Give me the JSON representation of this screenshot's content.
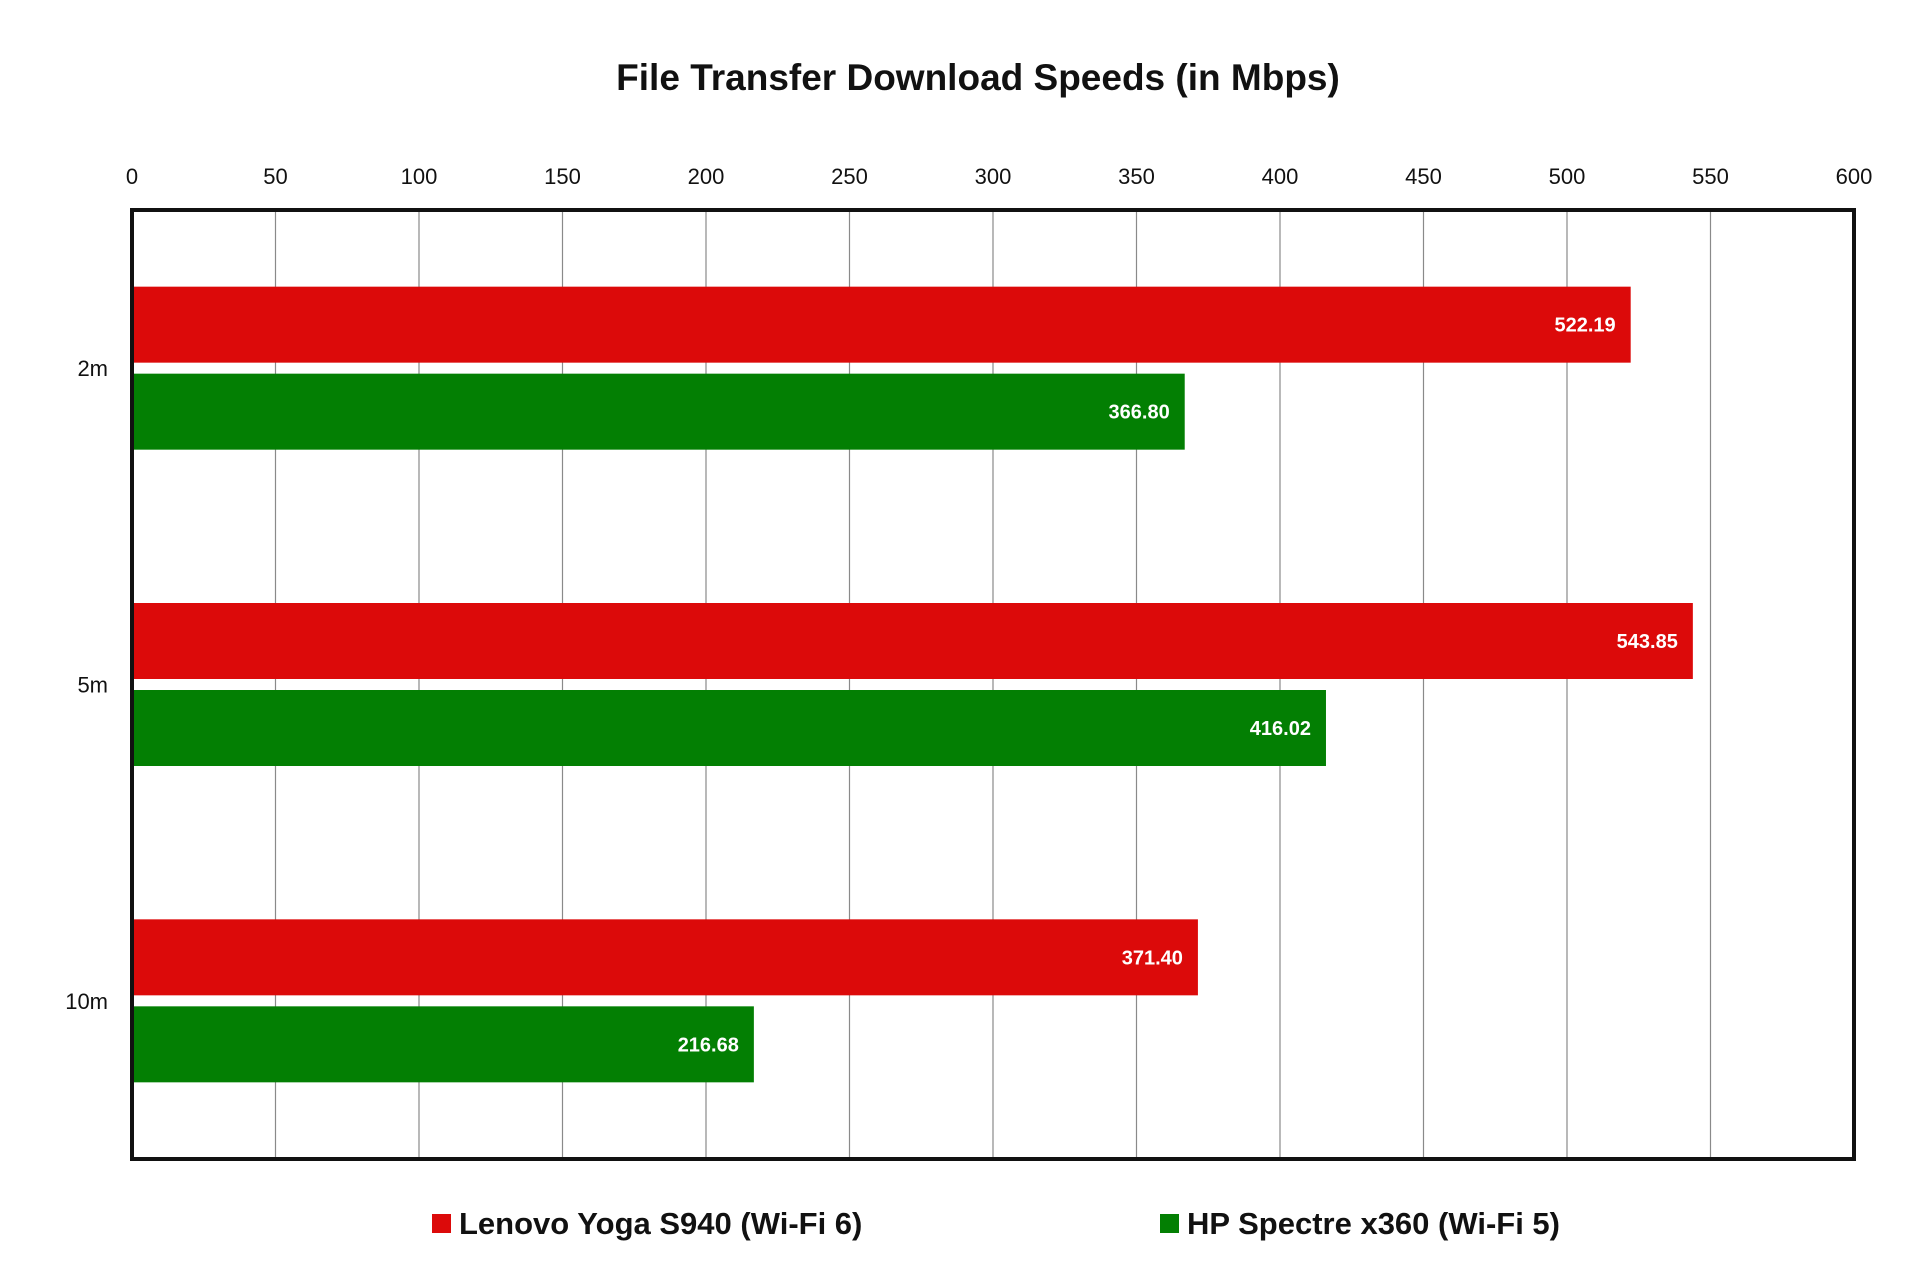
{
  "chart_data": {
    "type": "bar",
    "orientation": "horizontal",
    "title": "File Transfer Download Speeds (in Mbps)",
    "xlabel": "",
    "ylabel": "",
    "xlim": [
      0,
      600
    ],
    "x_ticks": [
      "0",
      "50",
      "100",
      "150",
      "200",
      "250",
      "300",
      "350",
      "400",
      "450",
      "500",
      "550",
      "600"
    ],
    "x_axis_position": "top",
    "grid": true,
    "legend_position": "bottom",
    "categories": [
      "2m",
      "5m",
      "10m"
    ],
    "series": [
      {
        "name": "Lenovo Yoga S940 (Wi-Fi 6)",
        "color": "#dc0a0a",
        "values": [
          522.19,
          543.85,
          371.4
        ],
        "labels": [
          "522.19",
          "543.85",
          "371.40"
        ]
      },
      {
        "name": "HP Spectre x360 (Wi-Fi 5)",
        "color": "#037f03",
        "values": [
          366.8,
          416.02,
          216.68
        ],
        "labels": [
          "366.80",
          "416.02",
          "216.68"
        ]
      }
    ]
  }
}
